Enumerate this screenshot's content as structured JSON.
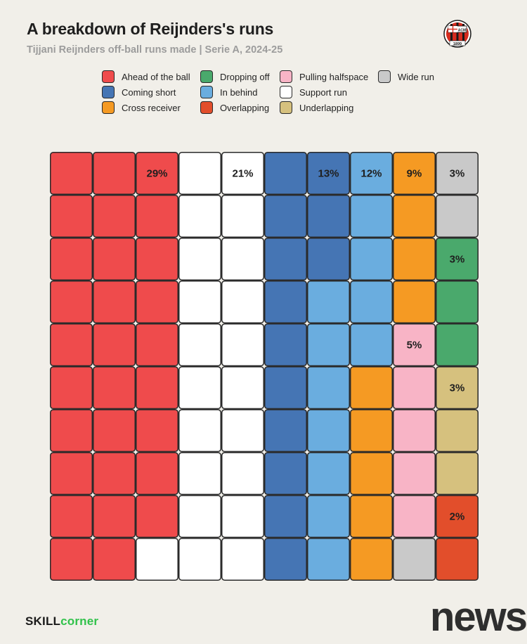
{
  "header": {
    "title": "A breakdown of Reijnders's runs",
    "subtitle": "Tijjani Reijnders off-ball runs made | Serie A, 2024-25",
    "crest_text_top": "ACM",
    "crest_text_bottom": "1899"
  },
  "footer": {
    "brand_part1": "SKILL",
    "brand_part2": "corner",
    "watermark": "news"
  },
  "chart_data": {
    "type": "waffle",
    "grid": {
      "rows": 10,
      "cols": 10
    },
    "legend": [
      {
        "name": "Ahead of the ball",
        "color": "#ef4b4c"
      },
      {
        "name": "Coming short",
        "color": "#4575b4"
      },
      {
        "name": "Cross receiver",
        "color": "#f59a23"
      },
      {
        "name": "Dropping off",
        "color": "#4aa96c"
      },
      {
        "name": "In behind",
        "color": "#6aaddf"
      },
      {
        "name": "Overlapping",
        "color": "#e24e2b"
      },
      {
        "name": "Pulling halfspace",
        "color": "#f8b4c6"
      },
      {
        "name": "Support run",
        "color": "#ffffff"
      },
      {
        "name": "Underlapping",
        "color": "#d6c17e"
      },
      {
        "name": "Wide run",
        "color": "#c9c9c9"
      }
    ],
    "categories": [
      {
        "name": "Ahead of the ball",
        "value": 29,
        "label": "29%",
        "color": "#ef4b4c"
      },
      {
        "name": "Support run",
        "value": 21,
        "label": "21%",
        "color": "#ffffff"
      },
      {
        "name": "Coming short",
        "value": 13,
        "label": "13%",
        "color": "#4575b4"
      },
      {
        "name": "In behind",
        "value": 12,
        "label": "12%",
        "color": "#6aaddf"
      },
      {
        "name": "Cross receiver",
        "value": 9,
        "label": "9%",
        "color": "#f59a23"
      },
      {
        "name": "Pulling halfspace",
        "value": 5,
        "label": "5%",
        "color": "#f8b4c6"
      },
      {
        "name": "Wide run",
        "value": 3,
        "label": "3%",
        "color": "#c9c9c9"
      },
      {
        "name": "Dropping off",
        "value": 3,
        "label": "3%",
        "color": "#4aa96c"
      },
      {
        "name": "Underlapping",
        "value": 3,
        "label": "3%",
        "color": "#d6c17e"
      },
      {
        "name": "Overlapping",
        "value": 2,
        "label": "2%",
        "color": "#e24e2b"
      }
    ]
  }
}
